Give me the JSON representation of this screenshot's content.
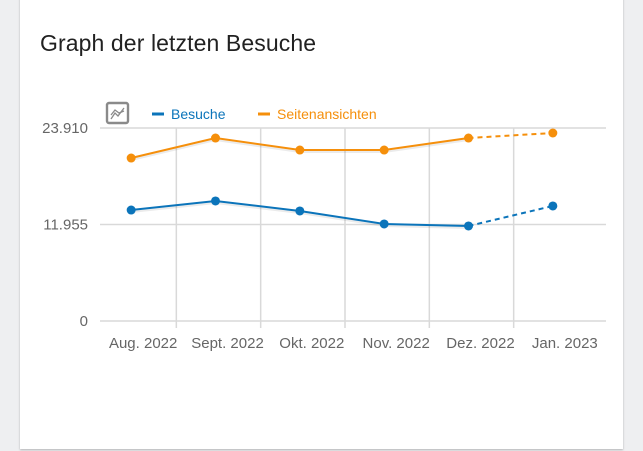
{
  "card": {
    "title": "Graph der letzten Besuche"
  },
  "toolbar": {
    "chart_type_icon": "line-chart-icon"
  },
  "chart_data": {
    "type": "line",
    "title": "Graph der letzten Besuche",
    "xlabel": "",
    "ylabel": "",
    "categories": [
      "Aug. 2022",
      "Sept. 2022",
      "Okt. 2022",
      "Nov. 2022",
      "Dez. 2022",
      "Jan. 2023"
    ],
    "y_ticks": [
      0,
      11955,
      23910
    ],
    "y_tick_labels": [
      "0",
      "11.955",
      "23.910"
    ],
    "ylim": [
      0,
      23910
    ],
    "grid": true,
    "legend_position": "top-left",
    "incomplete_last_period": true,
    "series": [
      {
        "name": "Besuche",
        "color": "#0b74ba",
        "values": [
          13750,
          14870,
          13630,
          12020,
          11770,
          14250
        ]
      },
      {
        "name": "Seitenansichten",
        "color": "#f58f0b",
        "values": [
          20190,
          22670,
          21180,
          21180,
          22670,
          23290
        ]
      }
    ]
  }
}
